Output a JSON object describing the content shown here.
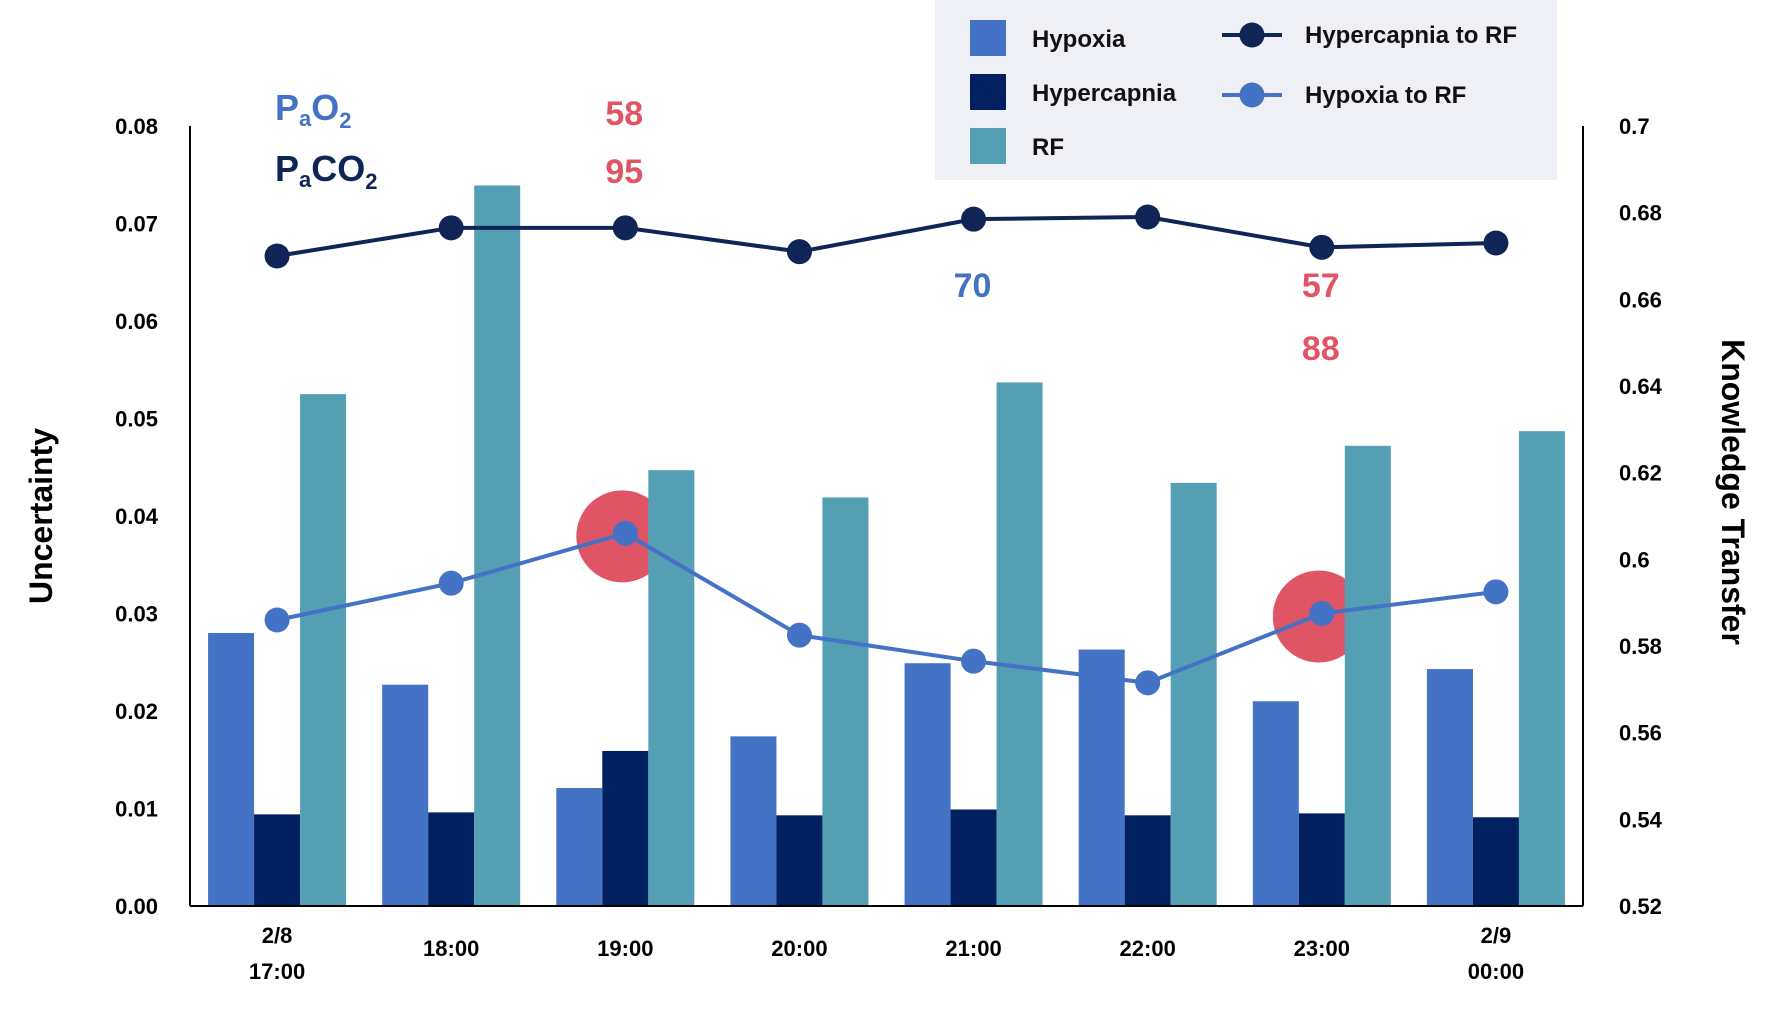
{
  "chart_data": {
    "type": "bar",
    "categories": [
      [
        "2/8",
        "17:00"
      ],
      [
        "18:00"
      ],
      [
        "19:00"
      ],
      [
        "20:00"
      ],
      [
        "21:00"
      ],
      [
        "22:00"
      ],
      [
        "23:00"
      ],
      [
        "2/9",
        "00:00"
      ]
    ],
    "ylabel": "Uncertainty",
    "ylim": [
      0,
      0.08
    ],
    "yticks": [
      "0.00",
      "0.01",
      "0.02",
      "0.03",
      "0.04",
      "0.05",
      "0.06",
      "0.07",
      "0.08"
    ],
    "y2label": "Knowledge Transfer",
    "y2lim": [
      0.52,
      0.7
    ],
    "y2ticks": [
      "0.52",
      "0.54",
      "0.56",
      "0.58",
      "0.6",
      "0.62",
      "0.64",
      "0.66",
      "0.68",
      "0.7"
    ],
    "series": [
      {
        "name": "Hypoxia",
        "kind": "bar",
        "axis": "left",
        "color": "#4472C4",
        "values": [
          0.028,
          0.0227,
          0.0121,
          0.0174,
          0.0249,
          0.0263,
          0.021,
          0.0243
        ]
      },
      {
        "name": "Hypercapnia",
        "kind": "bar",
        "axis": "left",
        "color": "#002060",
        "values": [
          0.0094,
          0.0096,
          0.0159,
          0.0093,
          0.0099,
          0.0093,
          0.0095,
          0.0091
        ]
      },
      {
        "name": "RF",
        "kind": "bar",
        "axis": "left",
        "color": "#559FB4",
        "values": [
          0.0525,
          0.0739,
          0.0447,
          0.0419,
          0.0537,
          0.0434,
          0.0472,
          0.0487
        ]
      },
      {
        "name": "Hypercapnia to RF",
        "kind": "line",
        "axis": "right",
        "color": "#0E2555",
        "values": [
          0.67,
          0.6765,
          0.6765,
          0.671,
          0.6785,
          0.679,
          0.672,
          0.673
        ]
      },
      {
        "name": "Hypoxia to RF",
        "kind": "line",
        "axis": "right",
        "color": "#4472C4",
        "values": [
          0.586,
          0.5945,
          0.606,
          0.5825,
          0.5765,
          0.5715,
          0.5875,
          0.5925
        ]
      }
    ],
    "highlights": [
      {
        "category_index": 2,
        "color": "#E05565"
      },
      {
        "category_index": 6,
        "color": "#E05565"
      }
    ],
    "annotations": [
      {
        "text": "58",
        "category_index": 2,
        "row": "PaO2",
        "color": "#E05565"
      },
      {
        "text": "95",
        "category_index": 2,
        "row": "PaCO2",
        "color": "#E05565"
      },
      {
        "text": "70",
        "category_index": 4,
        "row": "PaO2",
        "color": "#4472C4"
      },
      {
        "text": "57",
        "category_index": 6,
        "row": "PaO2",
        "color": "#E05565"
      },
      {
        "text": "88",
        "category_index": 6,
        "row": "PaCO2",
        "color": "#E05565"
      }
    ],
    "gas_labels": [
      {
        "main": "P",
        "sub": "a",
        "rest": "O",
        "sub2": "2",
        "color": "#4472C4"
      },
      {
        "main": "P",
        "sub": "a",
        "rest": "CO",
        "sub2": "2",
        "color": "#0E2555"
      }
    ],
    "legend": {
      "background": "#EEF0F6",
      "position": "top-right"
    }
  }
}
